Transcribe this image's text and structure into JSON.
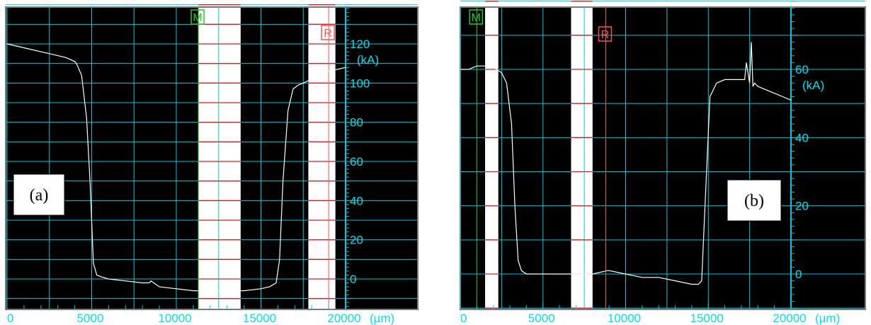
{
  "chart_data": [
    {
      "panel_label": "(a)",
      "type": "line",
      "xlim": [
        0,
        20000
      ],
      "ylim": [
        -15,
        140
      ],
      "x_unit": "(µm)",
      "y_unit": "(kA)",
      "x_ticks": [
        0,
        5000,
        10000,
        15000,
        20000
      ],
      "x_tick_labels": [
        "0",
        "5000",
        "10000",
        "15000",
        "20000"
      ],
      "y_ticks": [
        0,
        20,
        40,
        60,
        80,
        100,
        120
      ],
      "y_tick_labels": [
        "0",
        "20",
        "40",
        "60",
        "80",
        "100",
        "120"
      ],
      "markers": [
        {
          "label": "M",
          "x": 11300,
          "color": "#22cc22"
        },
        {
          "label": "R",
          "x": 19000,
          "color": "#ff5050"
        }
      ],
      "bands": [
        [
          11300,
          13800
        ],
        [
          17800,
          19400
        ]
      ],
      "series": [
        {
          "x": [
            0,
            1000,
            2000,
            3000,
            3500,
            4000,
            4100,
            4400,
            4700,
            4900,
            5100,
            5300,
            5600,
            6000,
            7000,
            8000,
            8400,
            8500,
            9000,
            10000,
            11000,
            12000,
            13000,
            14000,
            15000,
            15500,
            15900,
            16100,
            16300,
            16600,
            16900,
            17200,
            17500,
            18000,
            18500,
            19000,
            19500,
            20000
          ],
          "y": [
            120,
            118,
            116,
            114,
            113,
            111,
            110,
            104,
            82,
            50,
            8,
            2,
            1,
            0,
            -1,
            -2,
            -2,
            -1,
            -4,
            -5,
            -6,
            -6,
            -6,
            -6,
            -5,
            -4,
            -2,
            10,
            50,
            86,
            97,
            99,
            100,
            102,
            104,
            106,
            107,
            108
          ]
        }
      ]
    },
    {
      "panel_label": "(b)",
      "type": "line",
      "xlim": [
        0,
        20000
      ],
      "ylim": [
        -10,
        80
      ],
      "x_unit": "(µm)",
      "y_unit": "(kA)",
      "x_ticks": [
        0,
        5000,
        10000,
        15000,
        20000
      ],
      "x_tick_labels": [
        "0",
        "5000",
        "10000",
        "15000",
        "20000"
      ],
      "y_ticks": [
        0,
        20,
        40,
        60
      ],
      "y_tick_labels": [
        "0",
        "20",
        "40",
        "60"
      ],
      "markers": [
        {
          "label": "M",
          "x": 1000,
          "color": "#22cc22"
        },
        {
          "label": "R",
          "x": 8800,
          "color": "#ff5050"
        }
      ],
      "bands": [
        [
          1500,
          2300
        ],
        [
          6700,
          8000
        ]
      ],
      "series": [
        {
          "x": [
            0,
            500,
            1000,
            1400,
            1500,
            1800,
            2200,
            2500,
            2800,
            3100,
            3300,
            3500,
            3700,
            4000,
            5000,
            6000,
            7000,
            8000,
            8900,
            9000,
            10000,
            11000,
            12000,
            13000,
            14000,
            14400,
            14600,
            14800,
            15100,
            15500,
            16000,
            16500,
            17000,
            17200,
            17300,
            17500,
            17600,
            17700,
            17800,
            18000,
            18500,
            19000,
            19500,
            20000
          ],
          "y": [
            60,
            60,
            61,
            61,
            61,
            61,
            60,
            59,
            56,
            44,
            20,
            4,
            1,
            0,
            0,
            0,
            0,
            0,
            1,
            1,
            0,
            -1,
            -1,
            -2,
            -3,
            -3,
            -2,
            20,
            52,
            56,
            57,
            57,
            57,
            57,
            62,
            56,
            68,
            55,
            56,
            55,
            54,
            53,
            52,
            51
          ]
        }
      ]
    }
  ]
}
